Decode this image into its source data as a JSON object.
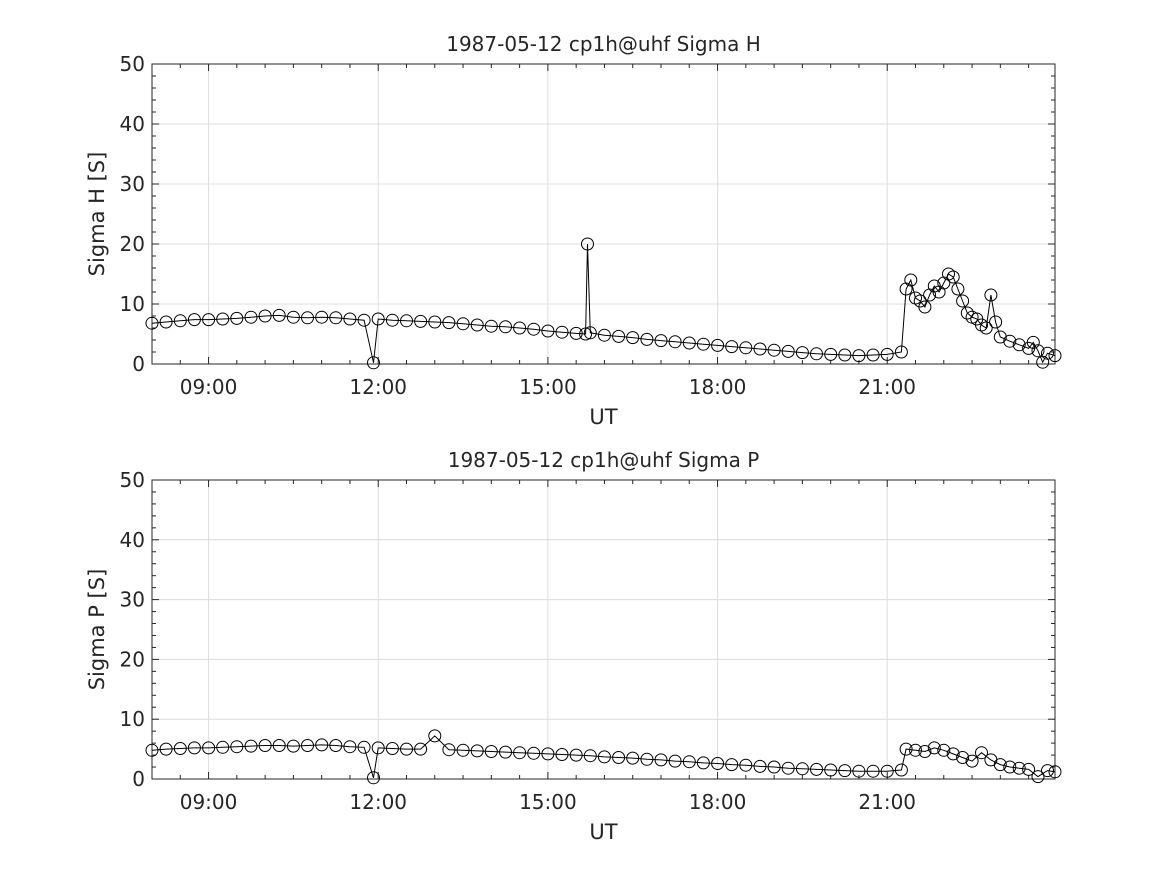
{
  "chart_data": [
    {
      "type": "line",
      "title": "1987-05-12  cp1h@uhf Sigma H",
      "xlabel": "UT",
      "ylabel": "Sigma H [S]",
      "xlim": [
        "08:00",
        "23:58"
      ],
      "ylim": [
        0,
        50
      ],
      "xticks": [
        "09:00",
        "12:00",
        "15:00",
        "18:00",
        "21:00"
      ],
      "yticks": [
        "0",
        "10",
        "20",
        "30",
        "40",
        "50"
      ],
      "grid": true,
      "marker": "circle",
      "color": "#000000",
      "series": [
        {
          "values": [
            [
              "08:00",
              6.8
            ],
            [
              "08:15",
              7.0
            ],
            [
              "08:30",
              7.2
            ],
            [
              "08:45",
              7.4
            ],
            [
              "09:00",
              7.4
            ],
            [
              "09:15",
              7.5
            ],
            [
              "09:30",
              7.6
            ],
            [
              "09:45",
              7.8
            ],
            [
              "10:00",
              8.0
            ],
            [
              "10:15",
              8.1
            ],
            [
              "10:30",
              7.8
            ],
            [
              "10:45",
              7.7
            ],
            [
              "11:00",
              7.8
            ],
            [
              "11:15",
              7.7
            ],
            [
              "11:30",
              7.5
            ],
            [
              "11:45",
              7.3
            ],
            [
              "11:55",
              0.2
            ],
            [
              "12:00",
              7.5
            ],
            [
              "12:15",
              7.3
            ],
            [
              "12:30",
              7.2
            ],
            [
              "12:45",
              7.1
            ],
            [
              "13:00",
              7.0
            ],
            [
              "13:15",
              6.9
            ],
            [
              "13:30",
              6.7
            ],
            [
              "13:45",
              6.5
            ],
            [
              "14:00",
              6.3
            ],
            [
              "14:15",
              6.2
            ],
            [
              "14:30",
              6.0
            ],
            [
              "14:45",
              5.8
            ],
            [
              "15:00",
              5.5
            ],
            [
              "15:15",
              5.3
            ],
            [
              "15:30",
              5.1
            ],
            [
              "15:40",
              5.0
            ],
            [
              "15:42",
              20.0
            ],
            [
              "15:45",
              5.2
            ],
            [
              "16:00",
              4.8
            ],
            [
              "16:15",
              4.6
            ],
            [
              "16:30",
              4.4
            ],
            [
              "16:45",
              4.1
            ],
            [
              "17:00",
              3.9
            ],
            [
              "17:15",
              3.7
            ],
            [
              "17:30",
              3.5
            ],
            [
              "17:45",
              3.3
            ],
            [
              "18:00",
              3.1
            ],
            [
              "18:15",
              2.9
            ],
            [
              "18:30",
              2.7
            ],
            [
              "18:45",
              2.5
            ],
            [
              "19:00",
              2.3
            ],
            [
              "19:15",
              2.1
            ],
            [
              "19:30",
              1.9
            ],
            [
              "19:45",
              1.7
            ],
            [
              "20:00",
              1.6
            ],
            [
              "20:15",
              1.5
            ],
            [
              "20:30",
              1.4
            ],
            [
              "20:45",
              1.5
            ],
            [
              "21:00",
              1.6
            ],
            [
              "21:15",
              2.0
            ],
            [
              "21:20",
              12.5
            ],
            [
              "21:25",
              14.0
            ],
            [
              "21:30",
              11.0
            ],
            [
              "21:35",
              10.5
            ],
            [
              "21:40",
              9.5
            ],
            [
              "21:45",
              11.5
            ],
            [
              "21:50",
              13.0
            ],
            [
              "21:55",
              12.0
            ],
            [
              "22:00",
              13.5
            ],
            [
              "22:05",
              15.0
            ],
            [
              "22:10",
              14.5
            ],
            [
              "22:15",
              12.5
            ],
            [
              "22:20",
              10.5
            ],
            [
              "22:25",
              8.5
            ],
            [
              "22:30",
              7.8
            ],
            [
              "22:35",
              7.5
            ],
            [
              "22:40",
              6.5
            ],
            [
              "22:45",
              6.0
            ],
            [
              "22:50",
              11.5
            ],
            [
              "22:55",
              7.0
            ],
            [
              "23:00",
              4.5
            ],
            [
              "23:10",
              3.8
            ],
            [
              "23:20",
              3.2
            ],
            [
              "23:30",
              2.6
            ],
            [
              "23:35",
              3.6
            ],
            [
              "23:40",
              2.2
            ],
            [
              "23:45",
              0.3
            ],
            [
              "23:50",
              1.8
            ],
            [
              "23:58",
              1.4
            ]
          ]
        }
      ]
    },
    {
      "type": "line",
      "title": "1987-05-12  cp1h@uhf Sigma P",
      "xlabel": "UT",
      "ylabel": "Sigma P [S]",
      "xlim": [
        "08:00",
        "23:58"
      ],
      "ylim": [
        0,
        50
      ],
      "xticks": [
        "09:00",
        "12:00",
        "15:00",
        "18:00",
        "21:00"
      ],
      "yticks": [
        "0",
        "10",
        "20",
        "30",
        "40",
        "50"
      ],
      "grid": true,
      "marker": "circle",
      "color": "#000000",
      "series": [
        {
          "values": [
            [
              "08:00",
              4.8
            ],
            [
              "08:15",
              5.0
            ],
            [
              "08:30",
              5.1
            ],
            [
              "08:45",
              5.2
            ],
            [
              "09:00",
              5.2
            ],
            [
              "09:15",
              5.3
            ],
            [
              "09:30",
              5.4
            ],
            [
              "09:45",
              5.5
            ],
            [
              "10:00",
              5.6
            ],
            [
              "10:15",
              5.6
            ],
            [
              "10:30",
              5.5
            ],
            [
              "10:45",
              5.6
            ],
            [
              "11:00",
              5.7
            ],
            [
              "11:15",
              5.6
            ],
            [
              "11:30",
              5.4
            ],
            [
              "11:45",
              5.3
            ],
            [
              "11:55",
              0.2
            ],
            [
              "12:00",
              5.2
            ],
            [
              "12:15",
              5.1
            ],
            [
              "12:30",
              5.0
            ],
            [
              "12:45",
              5.0
            ],
            [
              "13:00",
              7.2
            ],
            [
              "13:15",
              4.9
            ],
            [
              "13:30",
              4.8
            ],
            [
              "13:45",
              4.7
            ],
            [
              "14:00",
              4.6
            ],
            [
              "14:15",
              4.5
            ],
            [
              "14:30",
              4.4
            ],
            [
              "14:45",
              4.3
            ],
            [
              "15:00",
              4.2
            ],
            [
              "15:15",
              4.1
            ],
            [
              "15:30",
              4.0
            ],
            [
              "15:45",
              3.9
            ],
            [
              "16:00",
              3.7
            ],
            [
              "16:15",
              3.6
            ],
            [
              "16:30",
              3.5
            ],
            [
              "16:45",
              3.3
            ],
            [
              "17:00",
              3.2
            ],
            [
              "17:15",
              3.0
            ],
            [
              "17:30",
              2.9
            ],
            [
              "17:45",
              2.7
            ],
            [
              "18:00",
              2.6
            ],
            [
              "18:15",
              2.4
            ],
            [
              "18:30",
              2.3
            ],
            [
              "18:45",
              2.1
            ],
            [
              "19:00",
              2.0
            ],
            [
              "19:15",
              1.8
            ],
            [
              "19:30",
              1.7
            ],
            [
              "19:45",
              1.6
            ],
            [
              "20:00",
              1.5
            ],
            [
              "20:15",
              1.4
            ],
            [
              "20:30",
              1.3
            ],
            [
              "20:45",
              1.3
            ],
            [
              "21:00",
              1.3
            ],
            [
              "21:15",
              1.5
            ],
            [
              "21:20",
              5.0
            ],
            [
              "21:30",
              4.8
            ],
            [
              "21:40",
              4.6
            ],
            [
              "21:50",
              5.2
            ],
            [
              "22:00",
              4.8
            ],
            [
              "22:10",
              4.2
            ],
            [
              "22:20",
              3.6
            ],
            [
              "22:30",
              3.0
            ],
            [
              "22:40",
              4.4
            ],
            [
              "22:50",
              3.2
            ],
            [
              "23:00",
              2.4
            ],
            [
              "23:10",
              2.0
            ],
            [
              "23:20",
              1.8
            ],
            [
              "23:30",
              1.6
            ],
            [
              "23:40",
              0.4
            ],
            [
              "23:50",
              1.4
            ],
            [
              "23:58",
              1.2
            ]
          ]
        }
      ]
    }
  ]
}
